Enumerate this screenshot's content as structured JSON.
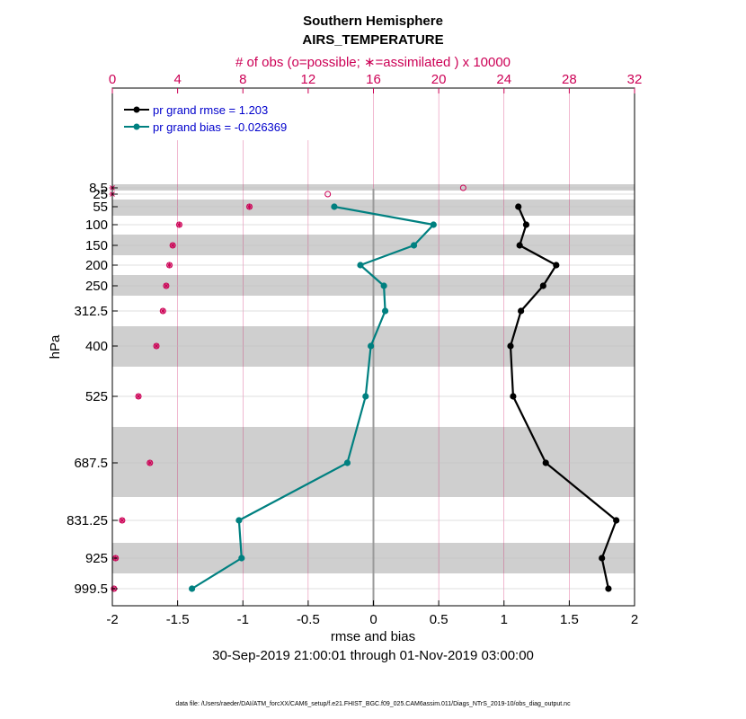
{
  "chart_data": {
    "type": "line",
    "title": "Southern Hemisphere",
    "subtitle": "AIRS_TEMPERATURE",
    "top_axis_label": "# of obs (o=possible; ∗=assimilated ) x 10000",
    "xlabel": "rmse and bias",
    "ylabel": "hPa",
    "date_range": "30-Sep-2019 21:00:01 through 01-Nov-2019 03:00:00",
    "footnote": "data file: /Users/raeder/DAI/ATM_forcXX/CAM6_setup/f.e21.FHIST_BGC.f09_025.CAM6assim.011/Diags_NTrS_2019-10/obs_diag_output.nc",
    "xlim": [
      -2,
      2
    ],
    "top_xlim": [
      0,
      32
    ],
    "x_ticks": [
      "-2",
      "-1.5",
      "-1",
      "-0.5",
      "0",
      "0.5",
      "1",
      "1.5",
      "2"
    ],
    "top_ticks": [
      "0",
      "4",
      "8",
      "12",
      "16",
      "20",
      "24",
      "28",
      "32"
    ],
    "levels": [
      8.5,
      25,
      55,
      100,
      150,
      200,
      250,
      312.5,
      400,
      525,
      687.5,
      831.25,
      925,
      999.5
    ],
    "level_labels": [
      "8.5",
      "25",
      "55",
      "100",
      "150",
      "200",
      "250",
      "312.5",
      "400",
      "525",
      "687.5",
      "831.25",
      "925",
      "999.5"
    ],
    "series": [
      {
        "name": "pr grand rmse = 1.203",
        "color": "#000000",
        "levels": [
          55,
          100,
          150,
          200,
          250,
          312.5,
          400,
          525,
          687.5,
          831.25,
          925,
          999.5
        ],
        "values": [
          1.11,
          1.17,
          1.12,
          1.4,
          1.3,
          1.13,
          1.05,
          1.07,
          1.32,
          1.86,
          1.75,
          1.8
        ]
      },
      {
        "name": "pr grand bias = -0.026369",
        "color": "#008080",
        "levels": [
          55,
          100,
          150,
          200,
          250,
          312.5,
          400,
          525,
          687.5,
          831.25,
          925,
          999.5
        ],
        "values": [
          -0.3,
          0.46,
          0.31,
          -0.1,
          0.08,
          0.09,
          -0.02,
          -0.06,
          -0.2,
          -1.03,
          -1.01,
          -1.39
        ]
      }
    ],
    "obs_possible": {
      "levels": [
        8.5,
        25,
        55,
        100,
        150,
        200,
        250,
        312.5,
        400,
        525,
        687.5,
        831.25,
        925,
        999.5
      ],
      "values": [
        21.5,
        13.2,
        8.4,
        4.1,
        3.7,
        3.5,
        3.3,
        3.1,
        2.7,
        1.6,
        2.3,
        0.6,
        0.2,
        0.1
      ]
    },
    "obs_assimilated": {
      "levels": [
        8.5,
        25,
        55,
        100,
        150,
        200,
        250,
        312.5,
        400,
        525,
        687.5,
        831.25,
        925,
        999.5
      ],
      "values": [
        0.0,
        0.0,
        8.4,
        4.1,
        3.7,
        3.5,
        3.3,
        3.1,
        2.7,
        1.6,
        2.3,
        0.6,
        0.2,
        0.1
      ]
    },
    "grid": true,
    "legend_position": "top-left"
  }
}
